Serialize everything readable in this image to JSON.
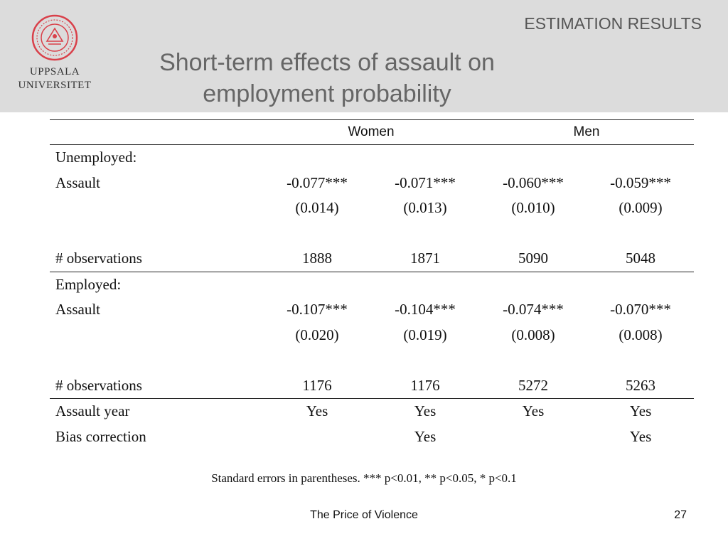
{
  "header": {
    "logo_line1": "UPPSALA",
    "logo_line2": "UNIVERSITET",
    "section": "ESTIMATION RESULTS",
    "title_line1": "Short-term effects of assault on",
    "title_line2": "employment probability",
    "accent_color": "#d9404a",
    "seal_icon": "university-seal-icon"
  },
  "table": {
    "groups": [
      "Women",
      "Men"
    ],
    "unemployed": {
      "heading": "Unemployed:",
      "assault_label": "Assault",
      "coefficients": [
        "-0.077***",
        "-0.071***",
        "-0.060***",
        "-0.059***"
      ],
      "std_errors": [
        "(0.014)",
        "(0.013)",
        "(0.010)",
        "(0.009)"
      ],
      "obs_label": "# observations",
      "observations": [
        "1888",
        "1871",
        "5090",
        "5048"
      ]
    },
    "employed": {
      "heading": "Employed:",
      "assault_label": "Assault",
      "coefficients": [
        "-0.107***",
        "-0.104***",
        "-0.074***",
        "-0.070***"
      ],
      "std_errors": [
        "(0.020)",
        "(0.019)",
        "(0.008)",
        "(0.008)"
      ],
      "obs_label": "# observations",
      "observations": [
        "1176",
        "1176",
        "5272",
        "5263"
      ]
    },
    "assault_year": {
      "label": "Assault year",
      "values": [
        "Yes",
        "Yes",
        "Yes",
        "Yes"
      ]
    },
    "bias_correction": {
      "label": "Bias correction",
      "values": [
        "",
        "Yes",
        "",
        "Yes"
      ]
    }
  },
  "note": "Standard errors in parentheses. *** p<0.01, ** p<0.05, * p<0.1",
  "footer": {
    "title": "The Price of Violence",
    "page": "27"
  }
}
